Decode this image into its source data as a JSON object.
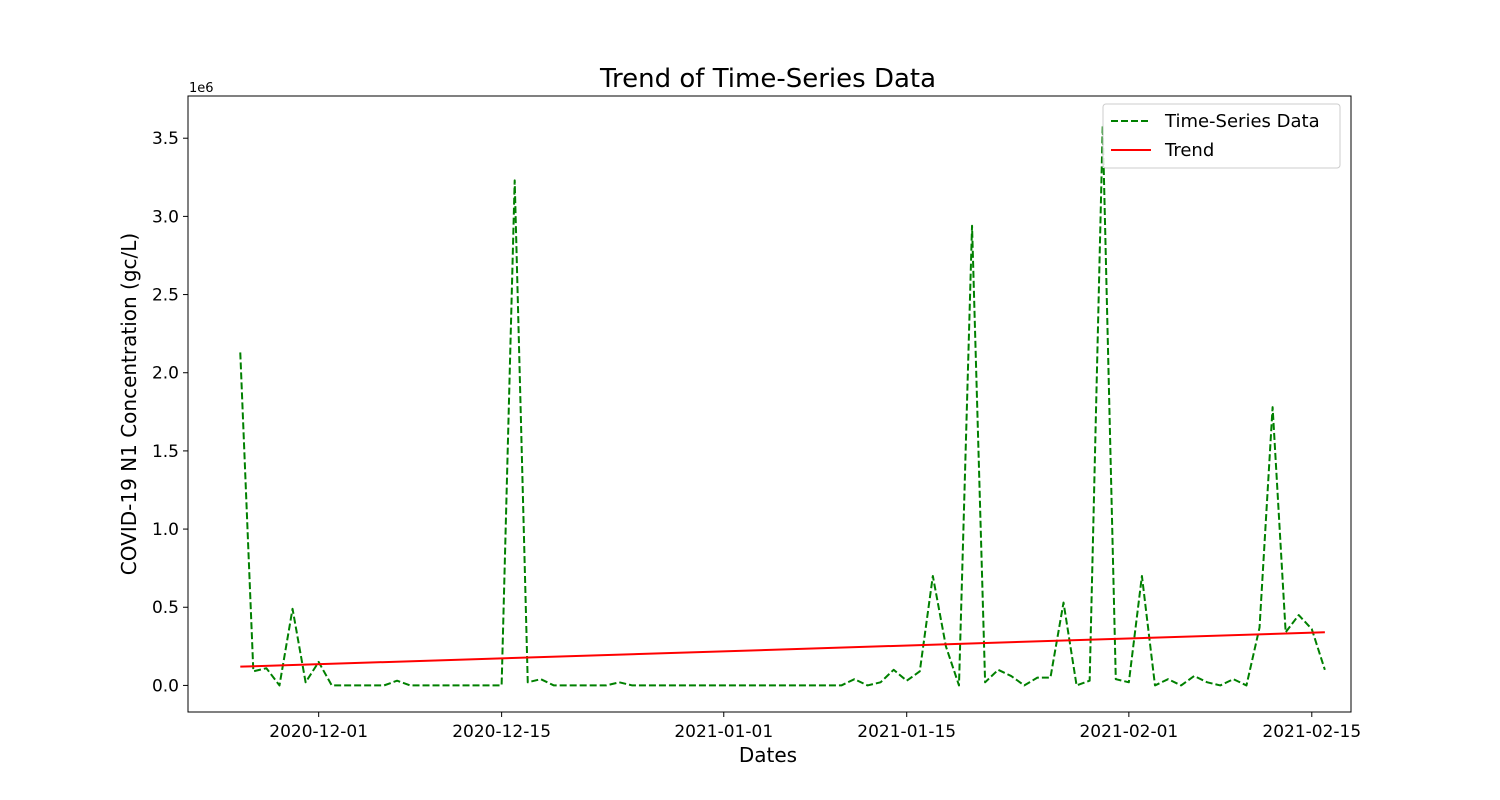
{
  "chart_data": {
    "type": "line",
    "title": "Trend of Time-Series Data",
    "xlabel": "Dates",
    "ylabel": "COVID-19 N1 Concentration (gc/L)",
    "y_offset_label": "1e6",
    "y_multiplier": 1000000,
    "xlim": [
      "2020-11-21",
      "2021-02-18"
    ],
    "ylim": [
      -170000,
      3770000
    ],
    "x_ticks": [
      "2020-12-01",
      "2020-12-15",
      "2021-01-01",
      "2021-01-15",
      "2021-02-01",
      "2021-02-15"
    ],
    "y_ticks": [
      0,
      500000,
      1000000,
      1500000,
      2000000,
      2500000,
      3000000,
      3500000
    ],
    "y_tick_labels": [
      "0.0",
      "0.5",
      "1.0",
      "1.5",
      "2.0",
      "2.5",
      "3.0",
      "3.5"
    ],
    "grid": false,
    "legend_position": "top-right",
    "series": [
      {
        "name": "Time-Series Data",
        "style": "dashed",
        "color": "#008000",
        "points": [
          [
            "2020-11-25",
            2130000
          ],
          [
            "2020-11-26",
            90000
          ],
          [
            "2020-11-27",
            110000
          ],
          [
            "2020-11-28",
            0
          ],
          [
            "2020-11-29",
            490000
          ],
          [
            "2020-11-30",
            20000
          ],
          [
            "2020-12-01",
            150000
          ],
          [
            "2020-12-02",
            0
          ],
          [
            "2020-12-03",
            0
          ],
          [
            "2020-12-04",
            0
          ],
          [
            "2020-12-05",
            0
          ],
          [
            "2020-12-06",
            0
          ],
          [
            "2020-12-07",
            30000
          ],
          [
            "2020-12-08",
            0
          ],
          [
            "2020-12-09",
            0
          ],
          [
            "2020-12-10",
            0
          ],
          [
            "2020-12-11",
            0
          ],
          [
            "2020-12-12",
            0
          ],
          [
            "2020-12-13",
            0
          ],
          [
            "2020-12-14",
            0
          ],
          [
            "2020-12-15",
            0
          ],
          [
            "2020-12-16",
            3230000
          ],
          [
            "2020-12-17",
            20000
          ],
          [
            "2020-12-18",
            40000
          ],
          [
            "2020-12-19",
            0
          ],
          [
            "2020-12-20",
            0
          ],
          [
            "2020-12-21",
            0
          ],
          [
            "2020-12-22",
            0
          ],
          [
            "2020-12-23",
            0
          ],
          [
            "2020-12-24",
            20000
          ],
          [
            "2020-12-25",
            0
          ],
          [
            "2020-12-26",
            0
          ],
          [
            "2020-12-27",
            0
          ],
          [
            "2020-12-28",
            0
          ],
          [
            "2020-12-29",
            0
          ],
          [
            "2020-12-30",
            0
          ],
          [
            "2020-12-31",
            0
          ],
          [
            "2021-01-01",
            0
          ],
          [
            "2021-01-02",
            0
          ],
          [
            "2021-01-03",
            0
          ],
          [
            "2021-01-04",
            0
          ],
          [
            "2021-01-05",
            0
          ],
          [
            "2021-01-06",
            0
          ],
          [
            "2021-01-07",
            0
          ],
          [
            "2021-01-08",
            0
          ],
          [
            "2021-01-09",
            0
          ],
          [
            "2021-01-10",
            0
          ],
          [
            "2021-01-11",
            40000
          ],
          [
            "2021-01-12",
            0
          ],
          [
            "2021-01-13",
            20000
          ],
          [
            "2021-01-14",
            100000
          ],
          [
            "2021-01-15",
            30000
          ],
          [
            "2021-01-16",
            90000
          ],
          [
            "2021-01-17",
            700000
          ],
          [
            "2021-01-18",
            250000
          ],
          [
            "2021-01-19",
            0
          ],
          [
            "2021-01-20",
            2940000
          ],
          [
            "2021-01-21",
            20000
          ],
          [
            "2021-01-22",
            100000
          ],
          [
            "2021-01-23",
            60000
          ],
          [
            "2021-01-24",
            0
          ],
          [
            "2021-01-25",
            50000
          ],
          [
            "2021-01-26",
            50000
          ],
          [
            "2021-01-27",
            530000
          ],
          [
            "2021-01-28",
            0
          ],
          [
            "2021-01-29",
            30000
          ],
          [
            "2021-01-30",
            3580000
          ],
          [
            "2021-01-31",
            40000
          ],
          [
            "2021-02-01",
            20000
          ],
          [
            "2021-02-02",
            700000
          ],
          [
            "2021-02-03",
            0
          ],
          [
            "2021-02-04",
            40000
          ],
          [
            "2021-02-05",
            0
          ],
          [
            "2021-02-06",
            60000
          ],
          [
            "2021-02-07",
            20000
          ],
          [
            "2021-02-08",
            0
          ],
          [
            "2021-02-09",
            40000
          ],
          [
            "2021-02-10",
            0
          ],
          [
            "2021-02-11",
            370000
          ],
          [
            "2021-02-12",
            1780000
          ],
          [
            "2021-02-13",
            340000
          ],
          [
            "2021-02-14",
            450000
          ],
          [
            "2021-02-15",
            360000
          ],
          [
            "2021-02-16",
            100000
          ]
        ]
      },
      {
        "name": "Trend",
        "style": "solid",
        "color": "#ff0000",
        "points": [
          [
            "2020-11-25",
            120000
          ],
          [
            "2021-02-16",
            340000
          ]
        ]
      }
    ]
  }
}
